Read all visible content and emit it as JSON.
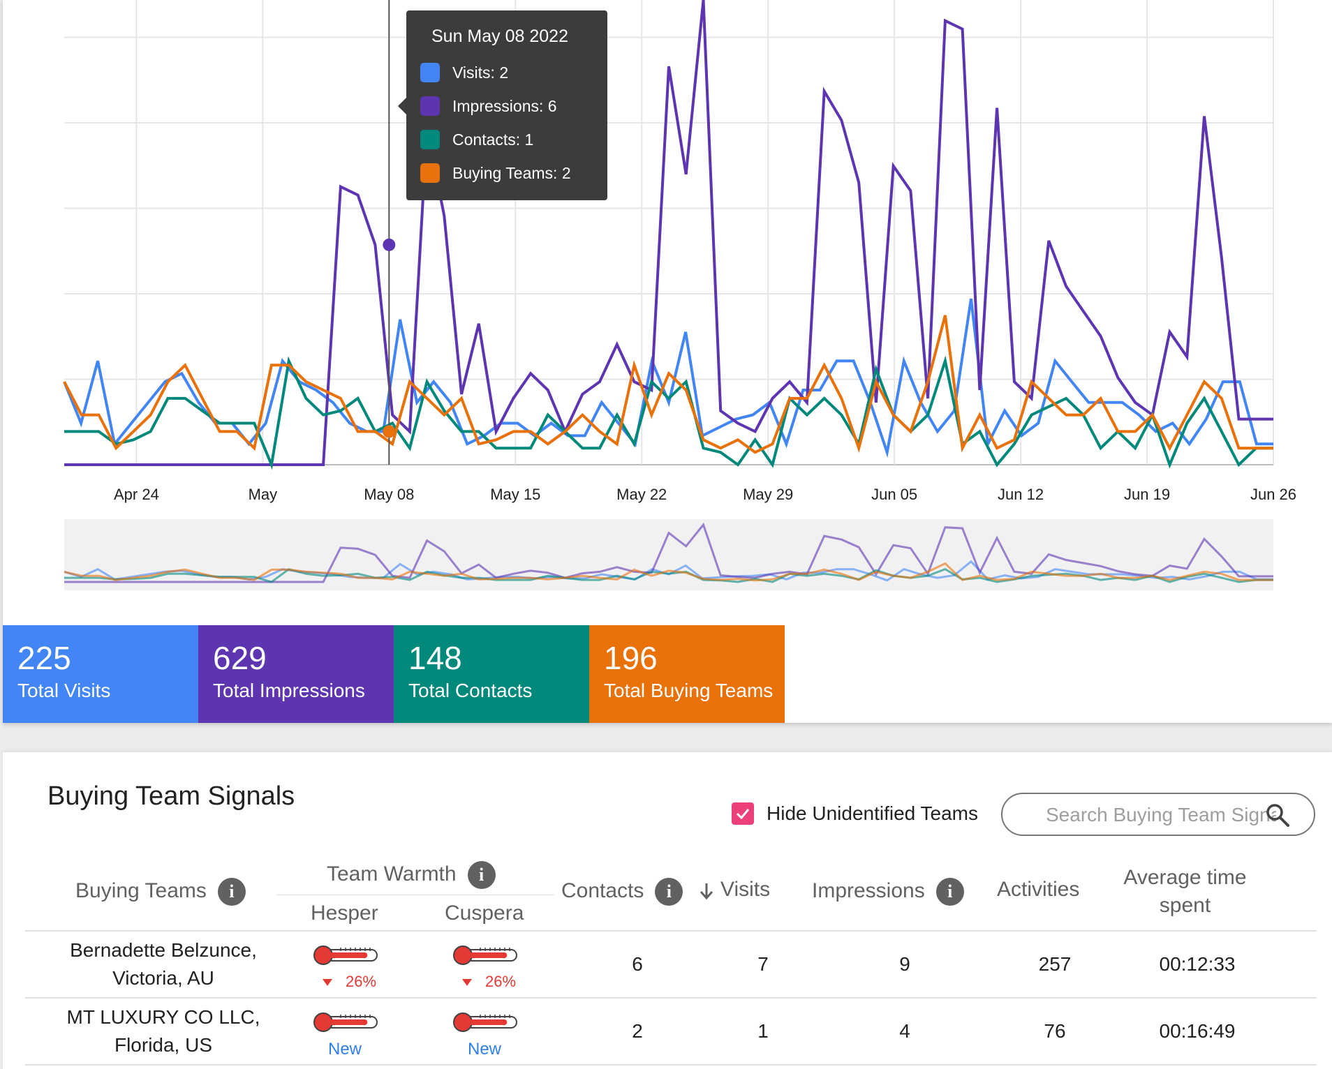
{
  "chart_data": {
    "type": "line",
    "x_tick_labels": [
      "Apr 24",
      "May",
      "May 08",
      "May 15",
      "May 22",
      "May 29",
      "Jun 05",
      "Jun 12",
      "Jun 19",
      "Jun 26"
    ],
    "x_start": "2022-04-20",
    "x_end": "2022-06-26",
    "series": [
      {
        "name": "Visits",
        "color": "#4285f4",
        "values": [
          2,
          1,
          2.5,
          0.5,
          1,
          1.5,
          2,
          2.2,
          1.5,
          1,
          1,
          0.5,
          1,
          2.5,
          2,
          1.8,
          1.5,
          1,
          0.8,
          0.8,
          3.5,
          1.5,
          2,
          1.5,
          0.5,
          0.7,
          1,
          1,
          0.7,
          1,
          0.7,
          0.7,
          1.5,
          1,
          0.5,
          2.5,
          1.5,
          3.2,
          0.7,
          0.9,
          1.1,
          1.2,
          1.5,
          0.5,
          1.8,
          1.8,
          2.5,
          2.5,
          1.5,
          0.3,
          2.5,
          1.5,
          0.8,
          1.3,
          4,
          0.5,
          1.3,
          0.7,
          1,
          2.5,
          2,
          1.5,
          1.5,
          1.5,
          1.2,
          0.8,
          1,
          0.5,
          1.1,
          2,
          2,
          0.5,
          0.5
        ]
      },
      {
        "name": "Impressions",
        "color": "#5e35b1",
        "values": [
          0,
          0,
          0,
          0,
          0,
          0,
          0,
          0,
          0,
          0,
          0,
          0,
          0,
          0,
          0,
          0,
          6.7,
          6.5,
          5.3,
          1.2,
          0.8,
          8.1,
          6,
          1.7,
          3.4,
          0.8,
          1.6,
          2.2,
          1.8,
          0.8,
          1.7,
          2,
          2.9,
          2,
          1.8,
          9.6,
          7,
          11.2,
          1.3,
          1,
          0.8,
          1.6,
          2,
          1.5,
          9,
          8.3,
          6.8,
          1.5,
          7.2,
          6.6,
          1.6,
          10.7,
          10.5,
          1.8,
          8.6,
          2,
          1.6,
          5.4,
          4.3,
          3.7,
          3.1,
          2.1,
          1.5,
          1.2,
          3.2,
          2.6,
          8.4,
          5,
          1.1,
          1.1,
          1.1
        ]
      },
      {
        "name": "Contacts",
        "color": "#00897b",
        "values": [
          0.8,
          0.8,
          0.8,
          0.5,
          0.6,
          0.8,
          1.6,
          1.6,
          1.3,
          1,
          1,
          1,
          0,
          2.5,
          1.6,
          1.2,
          1.3,
          1.6,
          0.8,
          1,
          0.4,
          2,
          1.3,
          0.8,
          0.8,
          0.4,
          0.4,
          0.4,
          1.2,
          0.8,
          0.4,
          0.4,
          1.2,
          0.5,
          2,
          1.6,
          2,
          0.4,
          0.3,
          0,
          0.6,
          0,
          1.6,
          1.2,
          1.6,
          1.2,
          0.5,
          2.3,
          1.2,
          0.8,
          1.2,
          2.5,
          0.5,
          0.8,
          0,
          0.5,
          1.2,
          1.4,
          1.6,
          1.2,
          0.4,
          0.8,
          0.4,
          1.2,
          0,
          1,
          1.6,
          0.8,
          0,
          0.4,
          0.4
        ]
      },
      {
        "name": "Buying Teams",
        "color": "#e8710a",
        "values": [
          2,
          1.2,
          1.2,
          0.4,
          0.8,
          1.2,
          2,
          2.4,
          1.6,
          0.8,
          0.8,
          0.4,
          2.4,
          2.4,
          2,
          1.8,
          1.6,
          0.8,
          0.8,
          0.5,
          2,
          1.6,
          1.2,
          1.6,
          0.5,
          0.6,
          0.8,
          0.8,
          0.5,
          0.8,
          1.2,
          0.8,
          0.5,
          2.4,
          1.2,
          2.2,
          1.8,
          0.6,
          0.4,
          0.6,
          0.3,
          0.5,
          1.6,
          1.6,
          2.4,
          1.6,
          0.4,
          2,
          1.2,
          0.8,
          2,
          3.6,
          0.4,
          1.2,
          0.4,
          0.6,
          2,
          1.6,
          1.2,
          1.2,
          1.6,
          0.8,
          0.8,
          1.2,
          0.4,
          1.2,
          2,
          1.6,
          0.4,
          0.4,
          0.4
        ]
      }
    ],
    "ylim": [
      0,
      11.2
    ],
    "grid": true,
    "tooltip": {
      "date": "Sun May 08 2022",
      "items": [
        {
          "label": "Visits: 2",
          "color": "#4285f4"
        },
        {
          "label": "Impressions: 6",
          "color": "#5e35b1"
        },
        {
          "label": "Contacts: 1",
          "color": "#00897b"
        },
        {
          "label": "Buying Teams: 2",
          "color": "#e8710a"
        }
      ]
    }
  },
  "stats": [
    {
      "value": "225",
      "label": "Total Visits",
      "color": "#4285f4"
    },
    {
      "value": "629",
      "label": "Total Impressions",
      "color": "#5e35b1"
    },
    {
      "value": "148",
      "label": "Total Contacts",
      "color": "#00897b"
    },
    {
      "value": "196",
      "label": "Total Buying Teams",
      "color": "#e8710a"
    }
  ],
  "signals": {
    "title": "Buying Team Signals",
    "hide_unidentified_label": "Hide Unidentified Teams",
    "hide_unidentified_checked": true,
    "search_placeholder": "Search Buying Team Signals",
    "columns": {
      "buying_teams": "Buying Teams",
      "team_warmth": "Team Warmth",
      "hesper": "Hesper",
      "cuspera": "Cuspera",
      "contacts": "Contacts",
      "visits": "Visits",
      "impressions": "Impressions",
      "activities": "Activities",
      "avg_time": "Average time spent"
    },
    "rows": [
      {
        "name": "Bernadette Belzunce, Victoria, AU",
        "hesper": "26%",
        "hesper_level": 0.88,
        "cuspera": "26%",
        "cuspera_level": 0.88,
        "contacts": "6",
        "visits": "7",
        "impressions": "9",
        "activities": "257",
        "avg_time": "00:12:33"
      },
      {
        "name": "MT LUXURY CO LLC, Florida, US",
        "hesper": "New",
        "hesper_level": 0.88,
        "cuspera": "New",
        "cuspera_level": 0.88,
        "contacts": "2",
        "visits": "1",
        "impressions": "4",
        "activities": "76",
        "avg_time": "00:16:49"
      }
    ]
  }
}
